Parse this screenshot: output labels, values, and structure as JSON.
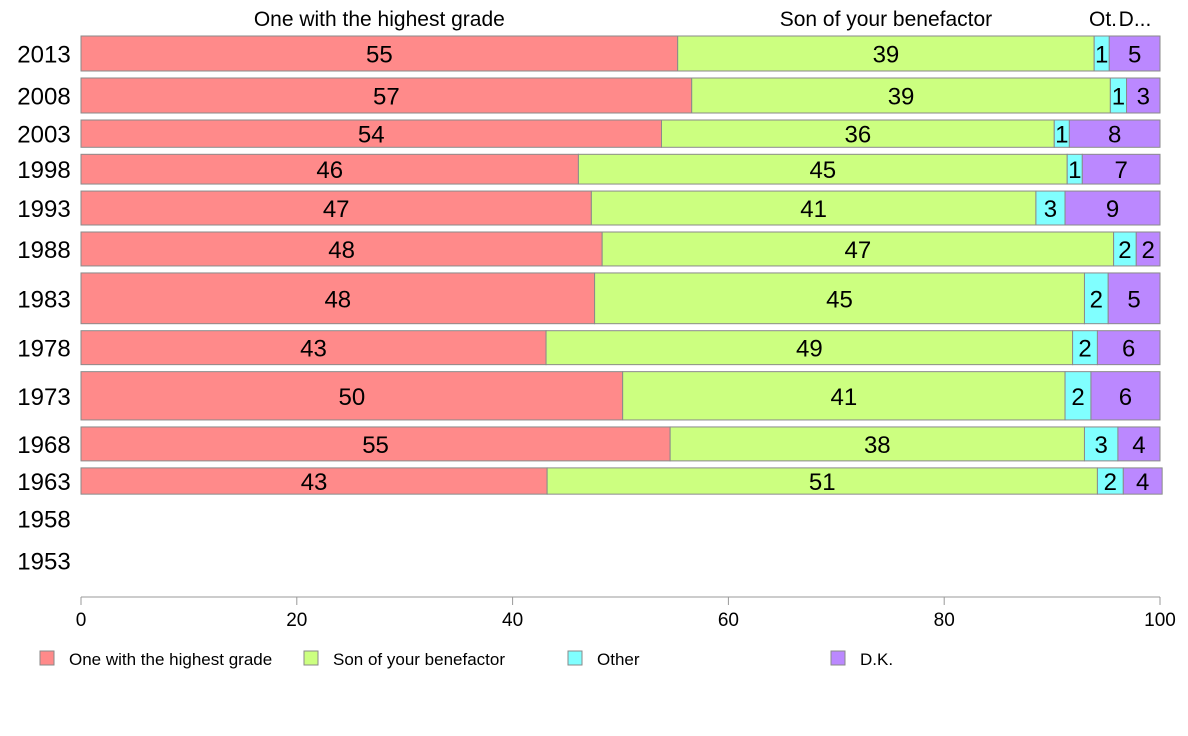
{
  "chart_data": {
    "type": "bar",
    "orientation": "horizontal",
    "stacked": true,
    "header_labels": [
      "One with the highest grade",
      "Son of your benefactor",
      "Ot.",
      "D..."
    ],
    "categories": [
      "2013",
      "2008",
      "2003",
      "1998",
      "1993",
      "1988",
      "1983",
      "1978",
      "1973",
      "1968",
      "1963",
      "1958",
      "1953"
    ],
    "series": [
      {
        "name": "One with the highest grade",
        "color": "#FF8A8A",
        "values": [
          55,
          57,
          54,
          46,
          47,
          48,
          48,
          43,
          50,
          55,
          43,
          null,
          null
        ],
        "shares": [
          55.3,
          56.6,
          53.8,
          46.1,
          47.3,
          48.3,
          47.6,
          43.1,
          50.2,
          54.6,
          43.2,
          null,
          null
        ]
      },
      {
        "name": "Son of your benefactor",
        "color": "#CCFF80",
        "values": [
          39,
          39,
          36,
          45,
          41,
          47,
          45,
          49,
          41,
          38,
          51,
          null,
          null
        ],
        "shares": [
          38.6,
          38.8,
          36.4,
          45.3,
          41.2,
          47.4,
          45.4,
          48.8,
          41.0,
          38.4,
          51.0,
          null,
          null
        ]
      },
      {
        "name": "Other",
        "color": "#80FFFF",
        "values": [
          1,
          1,
          1,
          1,
          3,
          2,
          2,
          2,
          2,
          3,
          2,
          null,
          null
        ],
        "shares": [
          1.4,
          1.5,
          1.4,
          1.4,
          2.7,
          2.1,
          2.2,
          2.3,
          2.4,
          3.1,
          2.4,
          null,
          null
        ]
      },
      {
        "name": "D.K.",
        "color": "#BB88FF",
        "values": [
          5,
          3,
          8,
          7,
          9,
          2,
          5,
          6,
          6,
          4,
          4,
          null,
          null
        ],
        "shares": [
          4.7,
          3.1,
          8.4,
          7.2,
          8.8,
          2.2,
          4.8,
          5.8,
          6.4,
          3.9,
          3.6,
          null,
          null
        ]
      }
    ],
    "bar_thickness": [
      1.0,
      1.0,
      0.78,
      0.85,
      0.97,
      0.97,
      1.45,
      0.97,
      1.38,
      0.97,
      0.75,
      0,
      0
    ],
    "xlim": [
      0,
      100
    ],
    "xticks": [
      0,
      20,
      40,
      60,
      80,
      100
    ],
    "grid": false,
    "legend_position": "bottom"
  }
}
